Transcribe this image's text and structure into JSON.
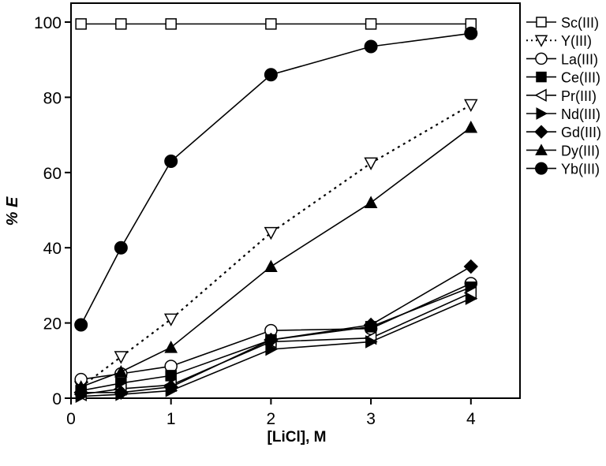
{
  "chart_data": {
    "type": "line",
    "title": "",
    "xlabel": "[LiCl], M",
    "ylabel": "% E",
    "xlim": [
      0,
      4.5
    ],
    "ylim": [
      0,
      100
    ],
    "xticks": [
      0,
      1,
      2,
      3,
      4
    ],
    "yticks": [
      0,
      20,
      40,
      60,
      80,
      100
    ],
    "grid": false,
    "legend_position": "right-outside",
    "x": [
      0.1,
      0.5,
      1,
      2,
      3,
      4
    ],
    "series": [
      {
        "name": "Sc(III)",
        "marker": "square-open",
        "line": "solid",
        "values": [
          99.5,
          99.5,
          99.5,
          99.5,
          99.5,
          99.5
        ]
      },
      {
        "name": "Y(III)",
        "marker": "triangle-down-open",
        "line": "dotted",
        "values": [
          3,
          11,
          21,
          44,
          62.5,
          78
        ]
      },
      {
        "name": "La(III)",
        "marker": "circle-open",
        "line": "solid",
        "values": [
          5,
          6.5,
          8.5,
          18,
          18.5,
          30.5
        ]
      },
      {
        "name": "Ce(III)",
        "marker": "square-filled",
        "line": "solid",
        "values": [
          2,
          4,
          6,
          15.5,
          19,
          29.5
        ]
      },
      {
        "name": "Pr(III)",
        "marker": "triangle-left-open",
        "line": "solid",
        "values": [
          1,
          2.5,
          3.5,
          15,
          16,
          28
        ]
      },
      {
        "name": "Nd(III)",
        "marker": "triangle-right-filled",
        "line": "solid",
        "values": [
          0.5,
          1,
          2,
          13,
          15,
          26.5
        ]
      },
      {
        "name": "Gd(III)",
        "marker": "diamond-filled",
        "line": "solid",
        "values": [
          1.5,
          1.5,
          3,
          15.5,
          19.5,
          35
        ]
      },
      {
        "name": "Dy(III)",
        "marker": "triangle-up-filled",
        "line": "solid",
        "values": [
          3,
          7,
          13.5,
          35,
          52,
          72
        ]
      },
      {
        "name": "Yb(III)",
        "marker": "circle-filled",
        "line": "solid",
        "values": [
          19.5,
          40,
          63,
          86,
          93.5,
          97
        ]
      }
    ]
  }
}
